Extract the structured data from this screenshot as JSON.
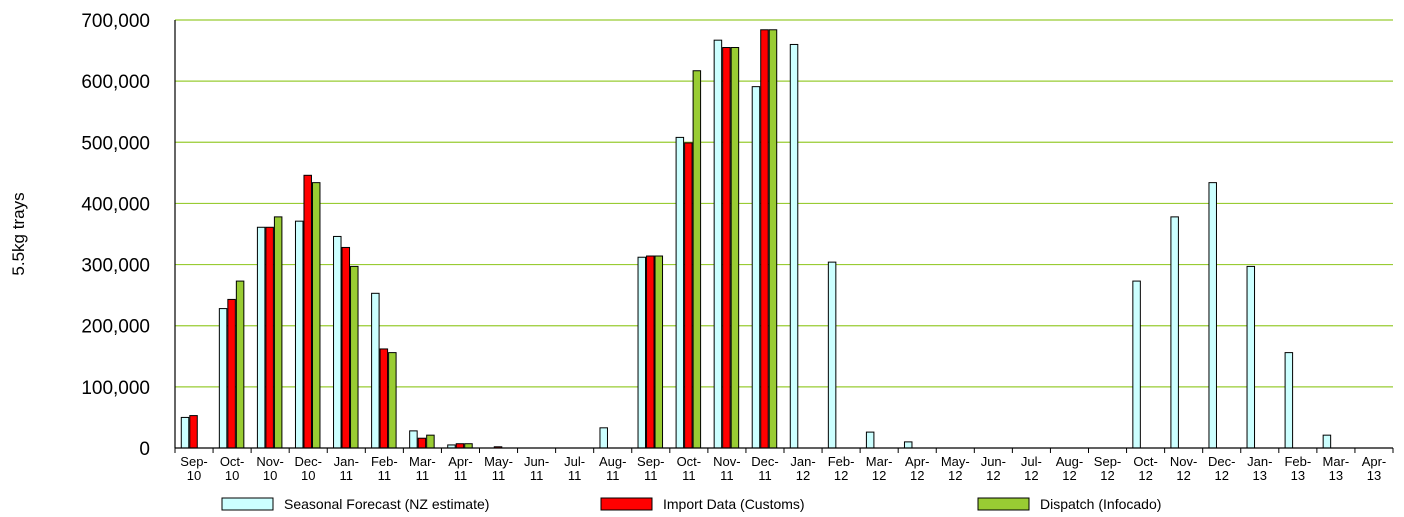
{
  "chart_data": {
    "type": "bar",
    "ylabel": "5.5kg trays",
    "xlabel": "",
    "ylim": [
      0,
      700000
    ],
    "yticks": [
      0,
      100000,
      200000,
      300000,
      400000,
      500000,
      600000,
      700000
    ],
    "ytick_labels": [
      "0",
      "100,000",
      "200,000",
      "300,000",
      "400,000",
      "500,000",
      "600,000",
      "700,000"
    ],
    "grid": true,
    "legend_position": "bottom",
    "categories": [
      [
        "Sep-",
        "10"
      ],
      [
        "Oct-",
        "10"
      ],
      [
        "Nov-",
        "10"
      ],
      [
        "Dec-",
        "10"
      ],
      [
        "Jan-",
        "11"
      ],
      [
        "Feb-",
        "11"
      ],
      [
        "Mar-",
        "11"
      ],
      [
        "Apr-",
        "11"
      ],
      [
        "May-",
        "11"
      ],
      [
        "Jun-",
        "11"
      ],
      [
        "Jul-",
        "11"
      ],
      [
        "Aug-",
        "11"
      ],
      [
        "Sep-",
        "11"
      ],
      [
        "Oct-",
        "11"
      ],
      [
        "Nov-",
        "11"
      ],
      [
        "Dec-",
        "11"
      ],
      [
        "Jan-",
        "12"
      ],
      [
        "Feb-",
        "12"
      ],
      [
        "Mar-",
        "12"
      ],
      [
        "Apr-",
        "12"
      ],
      [
        "May-",
        "12"
      ],
      [
        "Jun-",
        "12"
      ],
      [
        "Jul-",
        "12"
      ],
      [
        "Aug-",
        "12"
      ],
      [
        "Sep-",
        "12"
      ],
      [
        "Oct-",
        "12"
      ],
      [
        "Nov-",
        "12"
      ],
      [
        "Dec-",
        "12"
      ],
      [
        "Jan-",
        "13"
      ],
      [
        "Feb-",
        "13"
      ],
      [
        "Mar-",
        "13"
      ],
      [
        "Apr-",
        "13"
      ]
    ],
    "series": [
      {
        "name": "Seasonal Forecast (NZ estimate)",
        "color": "#ccffff",
        "values": [
          50000,
          228000,
          361000,
          371000,
          346000,
          253000,
          28000,
          5000,
          0,
          0,
          0,
          33000,
          312000,
          508000,
          667000,
          591000,
          660000,
          304000,
          26000,
          10000,
          0,
          0,
          0,
          0,
          0,
          273000,
          378000,
          434000,
          297000,
          156000,
          21000,
          0
        ]
      },
      {
        "name": "Import Data (Customs)",
        "color": "#ff0000",
        "values": [
          53000,
          243000,
          361000,
          446000,
          328000,
          162000,
          16000,
          7000,
          2000,
          0,
          0,
          0,
          314000,
          499000,
          655000,
          684000,
          0,
          0,
          0,
          0,
          0,
          0,
          0,
          0,
          0,
          0,
          0,
          0,
          0,
          0,
          0,
          0
        ]
      },
      {
        "name": "Dispatch (Infocado)",
        "color": "#99cc33",
        "values": [
          0,
          273000,
          378000,
          434000,
          297000,
          156000,
          21000,
          7000,
          0,
          0,
          0,
          0,
          314000,
          617000,
          655000,
          684000,
          0,
          0,
          0,
          0,
          0,
          0,
          0,
          0,
          0,
          0,
          0,
          0,
          0,
          0,
          0,
          0
        ]
      }
    ]
  },
  "colors": {
    "gridline": "#99cc33",
    "axis": "#000000",
    "bar_outline": "#000000"
  }
}
